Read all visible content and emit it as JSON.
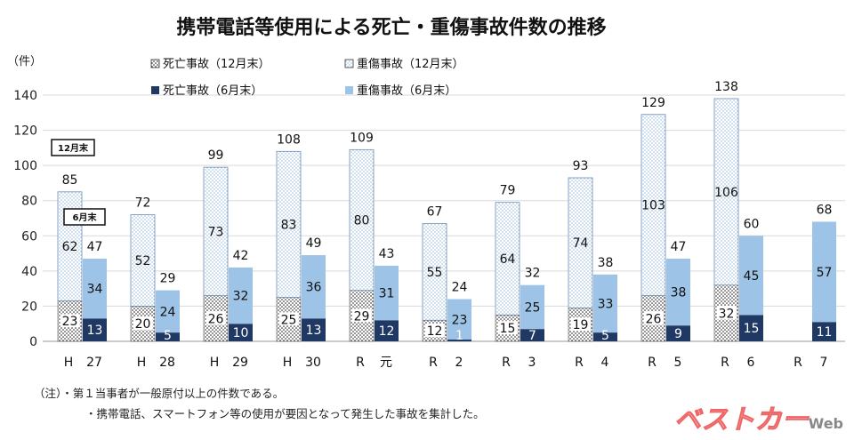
{
  "chart_data": {
    "type": "bar",
    "title": "携帯電話等使用による死亡・重傷事故件数の推移",
    "ylabel": "（件）",
    "ylim": [
      0,
      140
    ],
    "yticks": [
      0,
      20,
      40,
      60,
      80,
      100,
      120,
      140
    ],
    "grid": true,
    "legend_position": "top",
    "categories": [
      [
        "H",
        "27"
      ],
      [
        "H",
        "28"
      ],
      [
        "H",
        "29"
      ],
      [
        "H",
        "30"
      ],
      [
        "R",
        "元"
      ],
      [
        "R",
        "2"
      ],
      [
        "R",
        "3"
      ],
      [
        "R",
        "4"
      ],
      [
        "R",
        "5"
      ],
      [
        "R",
        "6"
      ],
      [
        "R",
        "7"
      ]
    ],
    "series": [
      {
        "name": "死亡事故（12月末）",
        "stack": "12月末",
        "values": [
          23,
          20,
          26,
          25,
          29,
          12,
          15,
          19,
          26,
          32,
          null
        ]
      },
      {
        "name": "重傷事故（12月末）",
        "stack": "12月末",
        "values": [
          62,
          52,
          73,
          83,
          80,
          55,
          64,
          74,
          103,
          106,
          null
        ]
      },
      {
        "name": "死亡事故（6月末）",
        "stack": "6月末",
        "values": [
          13,
          5,
          10,
          13,
          12,
          1,
          7,
          5,
          9,
          15,
          11
        ]
      },
      {
        "name": "重傷事故（6月末）",
        "stack": "6月末",
        "values": [
          34,
          24,
          32,
          36,
          31,
          23,
          25,
          33,
          38,
          45,
          57
        ]
      }
    ],
    "totals_12": [
      85,
      72,
      99,
      108,
      109,
      67,
      79,
      93,
      129,
      138,
      null
    ],
    "totals_6": [
      47,
      29,
      42,
      49,
      43,
      24,
      32,
      38,
      47,
      60,
      68
    ],
    "annotations": [
      "12月末",
      "6月末"
    ],
    "colors": {
      "death12_dots": "#1a1a1a",
      "serious12_dots": "#8fb3d9",
      "death6": "#1f3864",
      "serious6": "#9dc3e6",
      "grid": "#d9d9d9"
    }
  },
  "notes": [
    "（注）・第１当事者が一般原付以上の件数である。",
    "・携帯電話、スマートフォン等の使用が要因となって発生した事故を集計した。"
  ],
  "logo": {
    "text": "ベストカー",
    "sub": "Web"
  }
}
